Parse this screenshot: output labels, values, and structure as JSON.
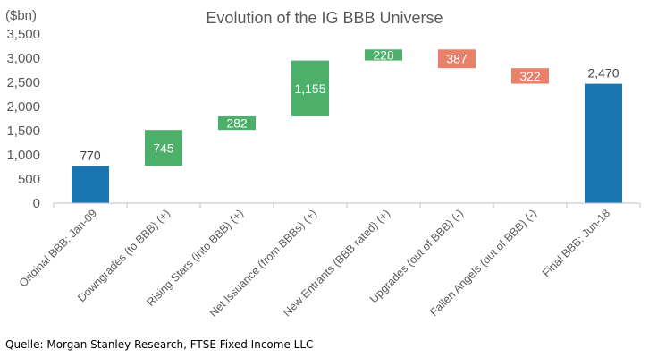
{
  "chart_data": {
    "type": "bar",
    "subtype": "waterfall",
    "title": "Evolution of the IG BBB Universe",
    "ylabel": "($bn)",
    "xlabel": "",
    "ylim": [
      0,
      3500
    ],
    "yticks": [
      "0",
      "500",
      "1,000",
      "1,500",
      "2,000",
      "2,500",
      "3,000",
      "3,500"
    ],
    "grid": false,
    "categories": [
      "Original BBB: Jan-09",
      "Downgrades (to BBB) (+)",
      "Rising Stars (into BBB) (+)",
      "Net Issuance (from BBBs) (+)",
      "New Entrants (BBB rated) (+)",
      "Upgrades (out of BBB) (-)",
      "Fallen Angels (out of BBB) (-)",
      "Final BBB: Jun-18"
    ],
    "values": [
      770,
      745,
      282,
      1155,
      228,
      -387,
      -322,
      2470
    ],
    "value_labels": [
      "770",
      "745",
      "282",
      "1,155",
      "228",
      "387",
      "322",
      "2,470"
    ],
    "kinds": [
      "total",
      "increase",
      "increase",
      "increase",
      "increase",
      "decrease",
      "decrease",
      "total"
    ],
    "colors": {
      "total": "#1a75b0",
      "increase": "#4caf6a",
      "decrease": "#e8806a"
    }
  },
  "source": "Quelle: Morgan Stanley Research, FTSE Fixed Income LLC"
}
